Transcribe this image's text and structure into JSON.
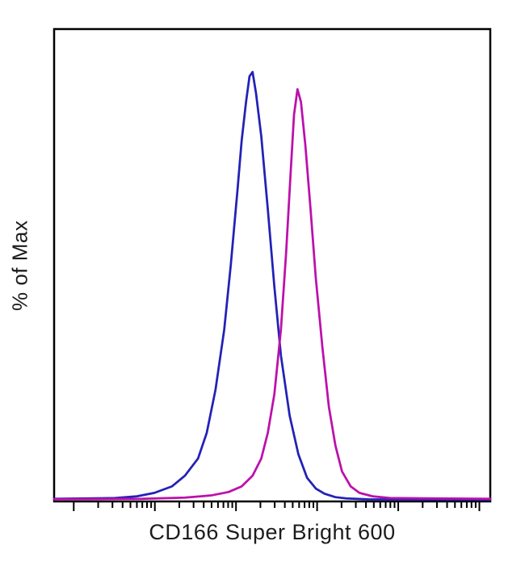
{
  "figure": {
    "background": "#ffffff"
  },
  "chart_data": {
    "type": "line",
    "subtype": "flow-cytometry-histogram",
    "title": "",
    "xlabel": "CD166 Super Bright 600",
    "ylabel": "% of Max",
    "legend": "none",
    "grid": false,
    "x_axis": {
      "scale": "log",
      "tick_labels": [],
      "ticks_spec": {
        "start_frac": 4.5,
        "decade_width_frac": 18.6,
        "decades": 5
      }
    },
    "y_axis": {
      "units": "% of max",
      "range_pct": [
        0,
        110
      ],
      "tick_labels": []
    },
    "colors": {
      "axis": "#000000",
      "blue_curve": "#2321b7",
      "magenta_curve": "#bc10ab"
    },
    "series": [
      {
        "name": "blue",
        "color": "#2321b7",
        "x": [
          0,
          14,
          19,
          23,
          27,
          30,
          33,
          35,
          37,
          39,
          40.5,
          42,
          43,
          44,
          44.8,
          45.5,
          46.3,
          47.5,
          49,
          50.5,
          52,
          54,
          56,
          58,
          60,
          62,
          64.5,
          67,
          72,
          100
        ],
        "y": [
          0.6,
          0.8,
          1.2,
          2,
          3.5,
          6,
          10,
          16,
          26,
          40,
          55,
          72,
          84,
          93,
          99,
          100,
          95,
          85,
          68,
          50,
          34,
          20,
          11,
          5.5,
          3,
          1.8,
          1,
          0.7,
          0.5,
          0.4
        ]
      },
      {
        "name": "magenta",
        "color": "#bc10ab",
        "x": [
          0,
          20,
          30,
          36,
          40,
          43,
          45.5,
          47.5,
          49,
          50.5,
          52,
          53.2,
          54.2,
          55,
          55.8,
          56.6,
          57.6,
          58.8,
          60,
          61.5,
          63,
          64.5,
          66,
          68,
          70,
          73,
          77,
          100
        ],
        "y": [
          0.5,
          0.6,
          0.9,
          1.4,
          2.2,
          3.5,
          6,
          10,
          16,
          25,
          40,
          58,
          76,
          90,
          96,
          93,
          83,
          68,
          52,
          36,
          22,
          13,
          7,
          3.5,
          2,
          1.2,
          0.8,
          0.6
        ]
      }
    ]
  }
}
